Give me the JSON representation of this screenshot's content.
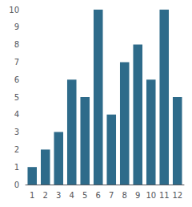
{
  "chart_data": {
    "type": "bar",
    "categories": [
      1,
      2,
      3,
      4,
      5,
      6,
      7,
      8,
      9,
      10,
      11,
      12
    ],
    "values": [
      1,
      2,
      3,
      6,
      5,
      10,
      4,
      7,
      8,
      6,
      10,
      5
    ],
    "color": "#2e6b8a",
    "ylim": [
      0,
      10
    ],
    "yticks": [
      0,
      1,
      2,
      3,
      4,
      5,
      6,
      7,
      8,
      9,
      10
    ],
    "grid": false
  }
}
